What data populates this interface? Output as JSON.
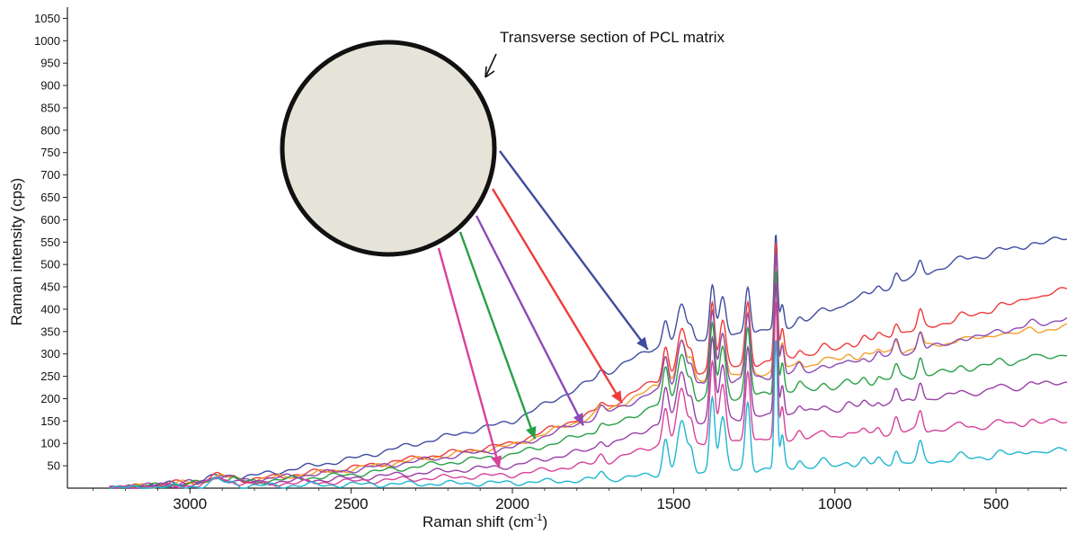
{
  "chart_data": {
    "type": "line",
    "title": "",
    "xlabel": "Raman shift (cm",
    "xlabel_sup": "-1",
    "xlabel_tail": ")",
    "ylabel": "Raman intensity (cps)",
    "xlim": [
      3380,
      280
    ],
    "ylim": [
      0,
      1075
    ],
    "x_reversed": true,
    "grid": false,
    "x_ticks": [
      3000,
      2500,
      2000,
      1500,
      1000,
      500
    ],
    "x_tick_labels": [
      "3000",
      "2500",
      "2000",
      "1500",
      "1000",
      "500"
    ],
    "y_ticks": [
      50,
      100,
      150,
      200,
      250,
      300,
      350,
      400,
      450,
      500,
      550,
      600,
      650,
      700,
      750,
      800,
      850,
      900,
      950,
      1000,
      1050
    ],
    "y_tick_labels": [
      "50",
      "100",
      "150",
      "200",
      "250",
      "300",
      "350",
      "400",
      "450",
      "500",
      "550",
      "600",
      "650",
      "700",
      "750",
      "800",
      "850",
      "900",
      "950",
      "1000",
      "1050"
    ],
    "peaks": [
      {
        "x": 2915,
        "w": 22,
        "h": 0.055
      },
      {
        "x": 2865,
        "w": 14,
        "h": 0.03
      },
      {
        "x": 1725,
        "w": 10,
        "h": 0.07
      },
      {
        "x": 1525,
        "w": 9,
        "h": 0.32
      },
      {
        "x": 1475,
        "w": 14,
        "h": 0.46
      },
      {
        "x": 1445,
        "w": 8,
        "h": 0.18
      },
      {
        "x": 1380,
        "w": 8,
        "h": 0.7
      },
      {
        "x": 1348,
        "w": 10,
        "h": 0.48
      },
      {
        "x": 1270,
        "w": 8,
        "h": 0.62
      },
      {
        "x": 1183,
        "w": 5,
        "h": 1.18
      },
      {
        "x": 1163,
        "w": 6,
        "h": 0.28
      },
      {
        "x": 1110,
        "w": 9,
        "h": 0.07
      },
      {
        "x": 1035,
        "w": 12,
        "h": 0.05
      },
      {
        "x": 960,
        "w": 11,
        "h": 0.04
      },
      {
        "x": 910,
        "w": 9,
        "h": 0.05
      },
      {
        "x": 865,
        "w": 8,
        "h": 0.05
      },
      {
        "x": 810,
        "w": 8,
        "h": 0.13
      },
      {
        "x": 735,
        "w": 8,
        "h": 0.17
      },
      {
        "x": 610,
        "w": 12,
        "h": 0.04
      },
      {
        "x": 490,
        "w": 14,
        "h": 0.04
      },
      {
        "x": 390,
        "w": 12,
        "h": 0.035
      }
    ],
    "series": [
      {
        "color": "#3e4ca0",
        "knots_x": [
          3240,
          3000,
          2800,
          2500,
          2000,
          1700,
          1560,
          1150,
          1000,
          800,
          600,
          280
        ],
        "knots_y": [
          0,
          12,
          28,
          65,
          150,
          260,
          315,
          360,
          400,
          460,
          510,
          560
        ],
        "peak_scale": 175
      },
      {
        "color": "#ef3b3b",
        "knots_x": [
          3240,
          3000,
          2800,
          2500,
          2000,
          1700,
          1560,
          1150,
          1000,
          800,
          600,
          280
        ],
        "knots_y": [
          0,
          14,
          20,
          45,
          100,
          182,
          240,
          290,
          310,
          345,
          380,
          445
        ],
        "peak_scale": 225
      },
      {
        "color": "#f2a02a",
        "knots_x": [
          3240,
          3000,
          2800,
          2500,
          2000,
          1700,
          1560,
          1150,
          1000,
          800,
          600,
          280
        ],
        "knots_y": [
          0,
          12,
          18,
          42,
          95,
          175,
          225,
          265,
          285,
          305,
          330,
          360
        ],
        "peak_scale": 220
      },
      {
        "color": "#8d4bb5",
        "knots_x": [
          3240,
          3000,
          2800,
          2500,
          2000,
          1700,
          1560,
          1150,
          1000,
          800,
          600,
          280
        ],
        "knots_y": [
          0,
          12,
          18,
          40,
          90,
          170,
          215,
          255,
          270,
          300,
          330,
          380
        ],
        "peak_scale": 235
      },
      {
        "color": "#27a045",
        "knots_x": [
          3240,
          3000,
          2800,
          2500,
          2000,
          1700,
          1560,
          1150,
          1000,
          800,
          600,
          280
        ],
        "knots_y": [
          0,
          10,
          15,
          30,
          75,
          135,
          185,
          215,
          225,
          245,
          265,
          300
        ],
        "peak_scale": 240
      },
      {
        "color": "#9a3fa8",
        "knots_x": [
          3240,
          3000,
          2800,
          2500,
          2000,
          1700,
          1560,
          1150,
          1000,
          800,
          600,
          280
        ],
        "knots_y": [
          0,
          8,
          12,
          22,
          50,
          95,
          140,
          165,
          175,
          190,
          210,
          238
        ],
        "peak_scale": 255
      },
      {
        "color": "#d8429b",
        "knots_x": [
          3240,
          3000,
          2800,
          2500,
          2000,
          1700,
          1560,
          1150,
          1000,
          800,
          600,
          280
        ],
        "knots_y": [
          0,
          6,
          9,
          15,
          30,
          60,
          95,
          110,
          115,
          125,
          135,
          150
        ],
        "peak_scale": 260
      },
      {
        "color": "#1fb6cf",
        "knots_x": [
          3240,
          3000,
          2800,
          2500,
          2000,
          1700,
          1560,
          1150,
          1000,
          800,
          600,
          280
        ],
        "knots_y": [
          0,
          4,
          5,
          8,
          12,
          20,
          30,
          45,
          50,
          55,
          65,
          85
        ],
        "peak_scale": 245
      }
    ],
    "annotation": {
      "text": "Transverse section of  PCL matrix",
      "circle_fill": "#e6e4d8",
      "circle_stroke": "#111111"
    },
    "arrows": [
      {
        "color": "#3e4ca0",
        "to_x": 1580,
        "to_y": 310
      },
      {
        "color": "#ef3b3b",
        "to_x": 1660,
        "to_y": 190
      },
      {
        "color": "#8d4bb5",
        "to_x": 1780,
        "to_y": 140
      },
      {
        "color": "#27a045",
        "to_x": 1930,
        "to_y": 110
      },
      {
        "color": "#d8429b",
        "to_x": 2040,
        "to_y": 45
      }
    ]
  }
}
